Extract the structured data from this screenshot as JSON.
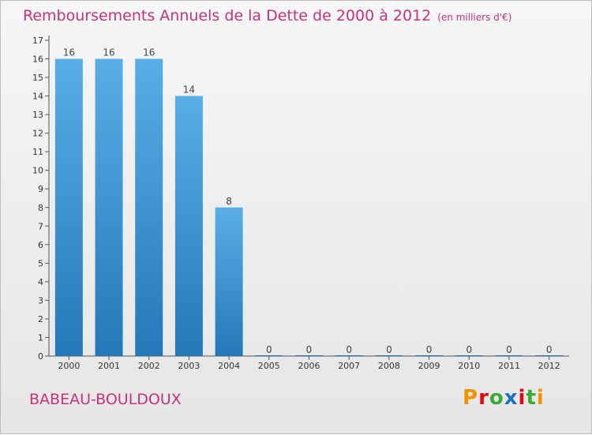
{
  "header": {
    "title": "Remboursements Annuels de la Dette de 2000 à 2012",
    "unit": "(en milliers d'€)"
  },
  "footer": {
    "commune": "BABEAU-BOULDOUX",
    "logo_text": "Proxiti",
    "logo_colors": [
      "#f39200",
      "#e30613",
      "#3aaa35",
      "#1d71b8",
      "#e30613",
      "#3aaa35",
      "#f39200"
    ]
  },
  "chart_data": {
    "type": "bar",
    "title": "Remboursements Annuels de la Dette de 2000 à 2012",
    "categories": [
      "2000",
      "2001",
      "2002",
      "2003",
      "2004",
      "2005",
      "2006",
      "2007",
      "2008",
      "2009",
      "2010",
      "2011",
      "2012"
    ],
    "values": [
      16,
      16,
      16,
      14,
      8,
      0,
      0,
      0,
      0,
      0,
      0,
      0,
      0
    ],
    "ylim": [
      0,
      17
    ],
    "yticks": [
      0,
      1,
      2,
      3,
      4,
      5,
      6,
      7,
      8,
      9,
      10,
      11,
      12,
      13,
      14,
      15,
      16,
      17
    ],
    "bar_color": "#3a8fd0",
    "data_labels": true,
    "grid": false
  }
}
